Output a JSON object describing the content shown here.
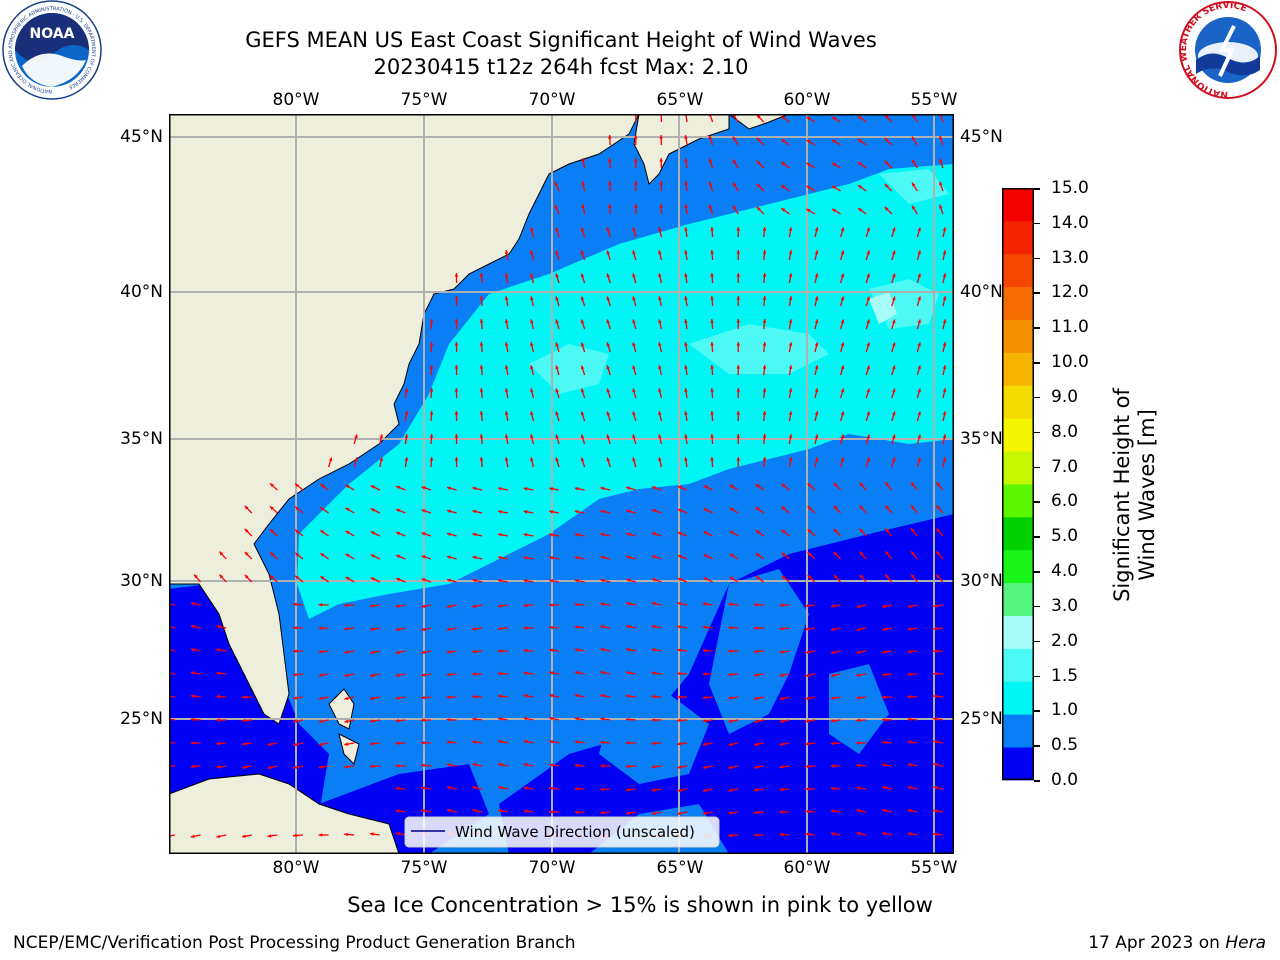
{
  "header": {
    "title_line1": "GEFS MEAN US East Coast Significant Height of Wind Waves",
    "title_line2": "20230415 t12z 264h fcst   Max: 2.10"
  },
  "logos": {
    "noaa_text": "NOAA",
    "noaa_ring_text": "NATIONAL OCEANIC AND ATMOSPHERIC ADMINISTRATION · U.S. DEPARTMENT OF COMMERCE",
    "nws_ring_text": "NATIONAL WEATHER SERVICE"
  },
  "map": {
    "lon_labels": [
      "80°W",
      "75°W",
      "70°W",
      "65°W",
      "60°W",
      "55°W"
    ],
    "lat_labels": [
      "45°N",
      "40°N",
      "35°N",
      "30°N",
      "25°N"
    ],
    "legend_label": "Wind Wave Direction (unscaled)",
    "max_value": 2.1,
    "arrow_color": "#ff0000",
    "land_color": "#eeeedc",
    "grid_color": "#b0b0b0"
  },
  "colorbar": {
    "label": "Significant Height of Wind Waves [m]",
    "ticks": [
      "15.0",
      "14.0",
      "13.0",
      "12.0",
      "11.0",
      "10.0",
      "9.0",
      "8.0",
      "7.0",
      "6.0",
      "5.0",
      "4.0",
      "3.0",
      "2.0",
      "1.5",
      "1.0",
      "0.5",
      "0.0"
    ],
    "colors": [
      "#0000f5",
      "#0a7ff5",
      "#00f5f5",
      "#4cf9f5",
      "#a8fcf7",
      "#55f57f",
      "#19f519",
      "#00d200",
      "#5af700",
      "#c6f700",
      "#f5f500",
      "#f5dc00",
      "#f5b400",
      "#f59100",
      "#f56d00",
      "#f54600",
      "#f52300",
      "#f50000"
    ]
  },
  "footer": {
    "note": "Sea Ice Concentration > 15% is shown in pink to yellow",
    "org": "NCEP/EMC/Verification Post Processing Product Generation Branch",
    "date": "17 Apr 2023 on ",
    "machine": "Hera"
  }
}
